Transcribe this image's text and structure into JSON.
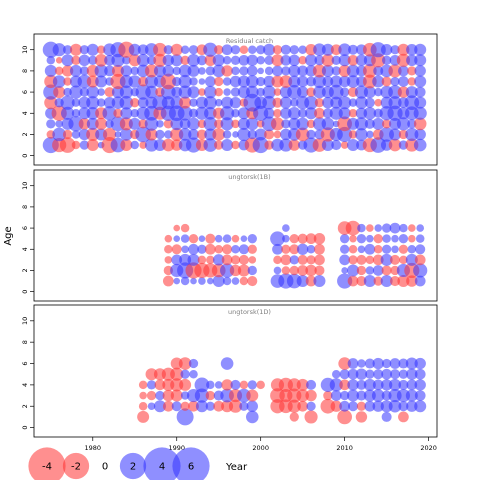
{
  "chart_data": {
    "type": "scatter",
    "subtype": "bubble-residual-grid",
    "ylabel": "Age",
    "xlabel": "Year",
    "xlim": [
      1973,
      2021
    ],
    "x_ticks": [
      1980,
      1990,
      2000,
      2010,
      2020
    ],
    "colors": {
      "positive": "#3333ff",
      "negative": "#ff3333"
    },
    "panels": [
      {
        "title": "Residual catch",
        "ylim": [
          -0.6,
          11.2
        ],
        "y_ticks": [
          0,
          2,
          4,
          6,
          8,
          10
        ],
        "ages": [
          1,
          2,
          3,
          4,
          5,
          6,
          7,
          8,
          9,
          10
        ],
        "years": [
          1975,
          1976,
          1977,
          1978,
          1979,
          1980,
          1981,
          1982,
          1983,
          1984,
          1985,
          1986,
          1987,
          1988,
          1989,
          1990,
          1991,
          1992,
          1993,
          1994,
          1995,
          1996,
          1997,
          1998,
          1999,
          2000,
          2001,
          2002,
          2003,
          2004,
          2005,
          2006,
          2007,
          2008,
          2009,
          2010,
          2011,
          2012,
          2013,
          2014,
          2015,
          2016,
          2017,
          2018,
          2019
        ],
        "residuals": [
          [
            1.8,
            -1.4,
            -1.7,
            -0.5,
            0.6,
            -1.0,
            0.3,
            -1.8,
            1.5,
            -1.0,
            0.5,
            -0.4,
            1.2,
            1.0,
            -1.1,
            -0.9,
            1.1,
            1.6,
            -1.0,
            1.3,
            -0.6,
            1.0,
            -0.5,
            0.8,
            -1.6,
            1.8,
            -0.6,
            1.1,
            1.2,
            -0.9,
            0.6,
            1.6,
            -1.3,
            1.0,
            0.7,
            -0.4,
            1.0,
            0.8,
            -1.4,
            1.7,
            0.9,
            -1.1,
            0.6,
            -1.2,
            1.1
          ],
          [
            -0.5,
            1.3,
            -0.6,
            0.5,
            0.9,
            -1.2,
            1.0,
            -1.2,
            0.3,
            1.1,
            -0.6,
            1.7,
            -1.0,
            0.6,
            0.5,
            -1.2,
            1.1,
            0.8,
            -0.7,
            1.0,
            -1.1,
            0.5,
            0.3,
            1.2,
            0.6,
            1.0,
            -0.7,
            -0.4,
            0.9,
            1.1,
            -1.3,
            0.6,
            0.7,
            -1.4,
            1.2,
            1.6,
            -0.5,
            1.1,
            0.4,
            -0.8,
            1.5,
            1.0,
            -0.6,
            1.2,
            0.9
          ],
          [
            0.6,
            0.4,
            1.0,
            1.6,
            -0.9,
            1.0,
            -1.0,
            0.5,
            1.5,
            -1.2,
            1.0,
            -0.6,
            1.3,
            0.4,
            -0.6,
            1.1,
            0.8,
            1.1,
            -0.5,
            1.3,
            -0.6,
            1.2,
            -0.5,
            1.0,
            1.1,
            -0.4,
            1.5,
            -1.2,
            0.6,
            1.0,
            1.1,
            -0.5,
            1.2,
            1.1,
            0.3,
            -1.5,
            1.0,
            1.2,
            0.7,
            1.0,
            -0.6,
            1.0,
            1.2,
            0.6,
            -1.1
          ],
          [
            0.9,
            -1.6,
            1.2,
            0.5,
            1.0,
            1.1,
            -1.0,
            1.4,
            -0.6,
            1.0,
            0.5,
            1.2,
            1.5,
            -1.2,
            1.6,
            1.7,
            1.5,
            0.6,
            1.2,
            1.1,
            -0.9,
            1.4,
            0.5,
            1.0,
            -1.0,
            1.6,
            0.8,
            -0.5,
            0.9,
            1.1,
            0.6,
            1.0,
            -0.8,
            0.7,
            1.2,
            1.0,
            -0.5,
            0.9,
            1.1,
            0.6,
            1.4,
            1.6,
            1.0,
            1.3,
            1.2
          ],
          [
            -1.2,
            0.6,
            1.4,
            0.5,
            1.0,
            1.2,
            0.5,
            0.9,
            1.1,
            1.3,
            -0.6,
            0.8,
            1.0,
            1.6,
            1.2,
            1.1,
            -1.0,
            0.5,
            1.0,
            1.2,
            0.4,
            1.0,
            0.9,
            -0.5,
            2.2,
            1.1,
            1.3,
            -0.7,
            1.0,
            0.5,
            1.2,
            1.3,
            -0.6,
            0.9,
            1.0,
            1.2,
            0.5,
            1.1,
            0.7,
            -0.4,
            1.0,
            1.2,
            0.8,
            1.5,
            1.0
          ],
          [
            1.6,
            -1.0,
            0.5,
            1.2,
            0.6,
            1.1,
            0.4,
            -0.7,
            1.0,
            1.2,
            0.5,
            1.6,
            1.1,
            -0.6,
            1.5,
            0.8,
            1.2,
            1.0,
            -0.4,
            1.1,
            -0.5,
            0.4,
            0.6,
            1.0,
            1.1,
            0.5,
            1.2,
            -0.4,
            1.0,
            1.4,
            0.9,
            -0.6,
            1.1,
            1.0,
            1.5,
            0.6,
            -0.7,
            1.2,
            1.0,
            0.5,
            1.1,
            1.3,
            -0.9,
            1.0,
            0.8
          ],
          [
            -1.2,
            1.1,
            -0.5,
            1.0,
            1.3,
            -1.0,
            1.0,
            0.5,
            -1.6,
            1.2,
            1.1,
            -0.7,
            1.2,
            1.0,
            -1.7,
            0.6,
            1.2,
            0.5,
            0.3,
            0.8,
            -0.6,
            0.5,
            0.9,
            1.0,
            1.1,
            0.6,
            0.9,
            -1.0,
            -1.1,
            1.0,
            0.9,
            0.7,
            1.2,
            0.8,
            1.0,
            0.9,
            1.1,
            0.8,
            -1.3,
            1.0,
            -0.7,
            0.6,
            0.8,
            -0.5,
            1.0
          ],
          [
            1.0,
            -0.5,
            -0.9,
            1.0,
            0.6,
            -1.0,
            1.2,
            0.8,
            -1.0,
            0.9,
            0.5,
            1.1,
            -1.2,
            1.0,
            0.9,
            0.5,
            1.1,
            1.0,
            0.4,
            0.6,
            1.1,
            -0.9,
            0.5,
            0.6,
            0.8,
            0.3,
            0.5,
            0.8,
            0.6,
            1.0,
            0.8,
            0.9,
            -1.2,
            1.0,
            0.6,
            -1.0,
            1.1,
            0.8,
            -1.3,
            0.7,
            1.1,
            -1.2,
            0.8,
            -0.6,
            0.9
          ],
          [
            0.5,
            -0.3,
            1.0,
            -0.6,
            0.9,
            0.6,
            -1.1,
            0.8,
            1.2,
            0.5,
            -1.0,
            1.1,
            0.6,
            -1.2,
            0.9,
            1.0,
            -0.6,
            1.1,
            0.7,
            -0.9,
            1.0,
            0.5,
            0.6,
            0.8,
            0.9,
            0.5,
            0.6,
            -1.0,
            0.8,
            0.9,
            -0.5,
            1.0,
            0.7,
            -1.1,
            0.6,
            1.0,
            -0.8,
            0.9,
            1.0,
            -1.4,
            0.6,
            0.8,
            -1.2,
            0.9,
            1.0
          ],
          [
            1.8,
            1.2,
            0.6,
            -1.0,
            0.6,
            1.0,
            -0.5,
            1.1,
            1.6,
            -1.8,
            1.0,
            0.8,
            1.2,
            -1.3,
            0.6,
            -1.0,
            0.5,
            0.6,
            -0.8,
            1.4,
            -0.6,
            0.8,
            0.6,
            -0.5,
            0.5,
            0.6,
            1.0,
            -0.6,
            0.7,
            0.6,
            0.5,
            -0.9,
            1.1,
            1.0,
            -0.8,
            1.1,
            0.7,
            0.8,
            -1.3,
            1.6,
            0.9,
            0.6,
            -1.0,
            0.9,
            1.0
          ]
        ]
      },
      {
        "title": "ungtorsk(1B)",
        "ylim": [
          -0.6,
          11.2
        ],
        "y_ticks": [
          0,
          2,
          4,
          6,
          8,
          10
        ],
        "ages": [
          1,
          2,
          3,
          4,
          5,
          6
        ],
        "years": [
          1989,
          1990,
          1991,
          1992,
          1993,
          1994,
          1995,
          1996,
          1997,
          1998,
          1999,
          2002,
          2003,
          2004,
          2005,
          2006,
          2007,
          2010,
          2011,
          2012,
          2013,
          2014,
          2015,
          2016,
          2017,
          2018,
          2019
        ],
        "residuals": [
          [
            -0.8,
            0.3,
            0.5,
            0.3,
            0.4,
            0.3,
            1.0,
            0.5,
            0.4,
            -0.5,
            -0.7,
            1.3,
            1.6,
            1.5,
            1.0,
            -0.8,
            1.0,
            1.6,
            -0.8,
            -0.7,
            1.0,
            -0.6,
            1.0,
            -0.7,
            -1.0,
            -0.9,
            0.8
          ],
          [
            -0.6,
            1.2,
            1.8,
            -1.8,
            -1.6,
            -1.4,
            -1.3,
            1.4,
            -0.9,
            -1.0,
            0.6,
            0.4,
            -0.5,
            -0.6,
            -0.8,
            -0.9,
            -0.7,
            0.3,
            1.0,
            -0.6,
            0.5,
            0.8,
            -0.7,
            -0.6,
            1.2,
            -1.6,
            1.4
          ],
          [
            -0.4,
            0.8,
            1.0,
            1.0,
            -0.5,
            -0.5,
            0.9,
            -0.8,
            -0.6,
            -0.7,
            -0.4,
            -0.5,
            -0.8,
            0.6,
            -0.7,
            -0.6,
            -0.8,
            0.8,
            -0.6,
            -0.7,
            -0.5,
            -0.8,
            1.0,
            -0.7,
            -0.5,
            1.0,
            -0.8
          ],
          [
            -0.5,
            -0.7,
            0.4,
            0.8,
            0.6,
            -0.8,
            -0.5,
            -0.7,
            0.5,
            0.7,
            -0.6,
            0.8,
            -0.6,
            -0.7,
            0.9,
            0.5,
            -0.8,
            0.6,
            -0.5,
            0.4,
            0.8,
            -0.5,
            0.6,
            0.4,
            -0.6,
            0.5,
            0.7
          ],
          [
            -0.4,
            0.3,
            0.5,
            -0.6,
            0.3,
            -0.7,
            0.4,
            0.5,
            -0.4,
            0.3,
            0.6,
            1.5,
            0.4,
            -0.6,
            -0.7,
            -0.8,
            -0.9,
            0.6,
            -0.4,
            0.6,
            0.4,
            -0.6,
            0.5,
            0.4,
            0.6,
            -0.4,
            0.5
          ],
          [
            0,
            -0.3,
            -0.5,
            0.0,
            0.0,
            0.0,
            0.0,
            0.0,
            0.0,
            0.0,
            0.0,
            0.0,
            0.4,
            0.0,
            0.0,
            0.0,
            0.0,
            -1.3,
            -1.5,
            0.5,
            -0.4,
            0.4,
            0.6,
            0.8,
            0.5,
            -0.4,
            0.4
          ]
        ]
      },
      {
        "title": "ungtorsk(1D)",
        "ylim": [
          -0.6,
          11.2
        ],
        "y_ticks": [
          0,
          2,
          4,
          6,
          8,
          10
        ],
        "ages": [
          1,
          2,
          3,
          4,
          5,
          6
        ],
        "years": [
          1986,
          1987,
          1988,
          1989,
          1990,
          1991,
          1992,
          1993,
          1994,
          1995,
          1996,
          1997,
          1998,
          1999,
          2000,
          2002,
          2003,
          2004,
          2005,
          2006,
          2008,
          2009,
          2010,
          2011,
          2012,
          2013,
          2014,
          2015,
          2016,
          2017,
          2018,
          2019
        ],
        "residuals": [
          [
            -1.0,
            0.0,
            0.0,
            0.0,
            0.0,
            2.0,
            0.0,
            0.0,
            0.0,
            0.0,
            0.0,
            0.0,
            0.0,
            1.1,
            0.0,
            0.0,
            0.0,
            -0.6,
            0.0,
            -1.2,
            0.0,
            0.0,
            -1.5,
            0.0,
            -0.9,
            0.0,
            0.0,
            0.7,
            0.0,
            -0.8,
            0.0,
            0.0
          ],
          [
            -0.5,
            0.4,
            1.0,
            -0.8,
            0.7,
            -0.6,
            -0.8,
            1.0,
            0.6,
            -0.8,
            -1.0,
            -1.2,
            0.6,
            0.9,
            0.0,
            -1.4,
            -1.3,
            -1.2,
            -0.8,
            0.6,
            -1.5,
            -0.9,
            0.8,
            0.7,
            -0.6,
            0.8,
            0.9,
            1.0,
            1.1,
            0.7,
            0.9,
            1.0
          ],
          [
            -0.4,
            -0.6,
            0.6,
            -0.9,
            -1.0,
            0.5,
            1.2,
            1.4,
            -0.6,
            0.7,
            1.3,
            -1.2,
            1.3,
            -1.0,
            0.0,
            -1.5,
            -1.2,
            -1.4,
            -1.1,
            -0.9,
            -0.6,
            0.8,
            0.6,
            1.0,
            0.7,
            1.0,
            1.1,
            0.7,
            1.2,
            1.2,
            1.0,
            0.8
          ],
          [
            -0.5,
            0.6,
            -0.8,
            -1.0,
            -1.2,
            -1.0,
            0.0,
            1.5,
            0.5,
            0.4,
            -0.9,
            0.7,
            -0.5,
            0.6,
            -0.5,
            -1.2,
            -1.4,
            -1.2,
            -1.0,
            0.7,
            1.4,
            1.2,
            -0.8,
            0.9,
            0.7,
            1.0,
            0.8,
            0.9,
            1.0,
            0.7,
            0.8,
            0.9
          ],
          [
            0.0,
            -1.0,
            -1.0,
            -1.2,
            -1.2,
            0.6,
            0.5,
            0.0,
            0.0,
            0.0,
            0.0,
            0.0,
            0.0,
            0.0,
            0.0,
            0.0,
            0.0,
            0.0,
            0.0,
            0.0,
            0.0,
            0.5,
            0.7,
            0.8,
            0.9,
            0.6,
            0.7,
            0.8,
            0.7,
            0.6,
            0.9,
            0.8
          ],
          [
            0.0,
            0.0,
            0.0,
            0.0,
            -1.0,
            -1.1,
            0.6,
            0.0,
            0.0,
            0.0,
            1.1,
            0.0,
            0.0,
            0.0,
            0.0,
            0.0,
            0.0,
            0.0,
            0.0,
            0.0,
            0.0,
            0.0,
            -1.1,
            0.8,
            0.5,
            0.7,
            0.9,
            0.6,
            0.8,
            0.7,
            1.0,
            0.9
          ]
        ]
      }
    ],
    "legend": {
      "placement": "bottom-left",
      "values": [
        -4,
        -2,
        0,
        2,
        4,
        6
      ],
      "labels": [
        "-4",
        "-2",
        "0",
        "2",
        "4",
        "6"
      ]
    }
  }
}
